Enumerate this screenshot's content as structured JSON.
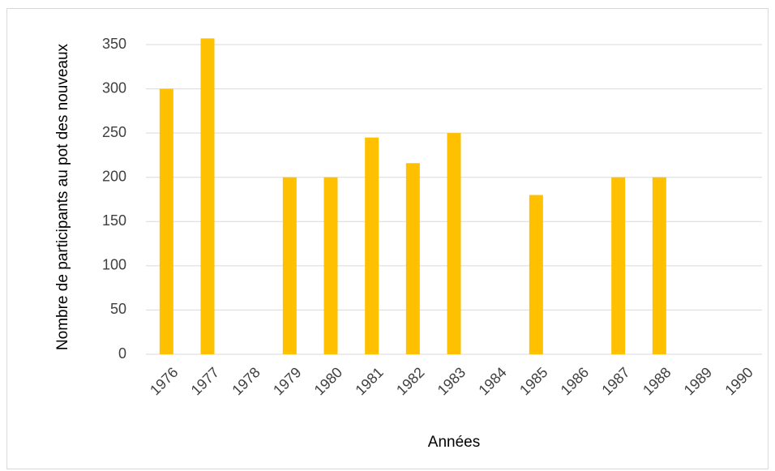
{
  "chart_data": {
    "type": "bar",
    "x_label": "Années",
    "y_label": "Nombre de participants au pot des nouveaux",
    "categories": [
      "1976",
      "1977",
      "1978",
      "1979",
      "1980",
      "1981",
      "1982",
      "1983",
      "1984",
      "1985",
      "1986",
      "1987",
      "1988",
      "1989",
      "1990"
    ],
    "values": [
      300,
      357,
      null,
      200,
      200,
      245,
      216,
      250,
      null,
      180,
      null,
      200,
      200,
      null,
      null
    ],
    "color": "#ffc000",
    "ylim": [
      0,
      350
    ],
    "yticks": [
      0,
      50,
      100,
      150,
      200,
      250,
      300,
      350
    ],
    "grid": true
  }
}
